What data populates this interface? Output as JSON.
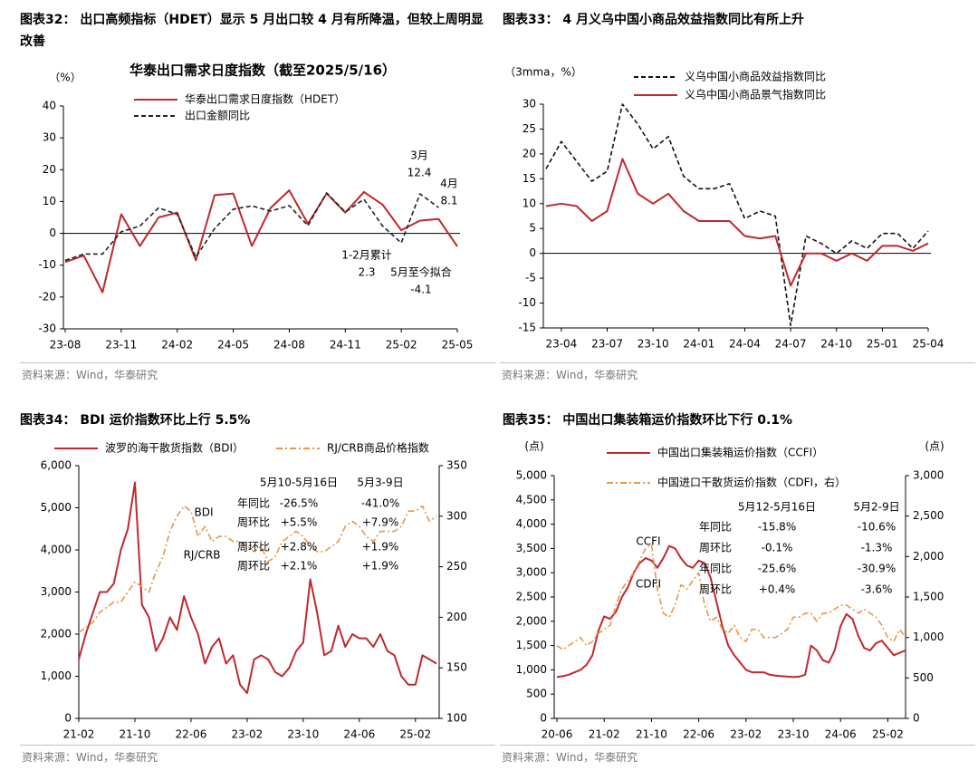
{
  "chart_data": [
    {
      "type": "line",
      "figure_title": "图表32：  出口高频指标（HDET）显示 5 月出口较 4 月有所降温，但较上周明显改善",
      "title": "华泰出口需求日度指数（截至2025/5/16）",
      "y_label": "（%）",
      "source": "资料来源：Wind，华泰研究",
      "categories": [
        "23-08",
        null,
        null,
        "23-11",
        null,
        null,
        "24-02",
        null,
        null,
        "24-05",
        null,
        null,
        "24-08",
        null,
        null,
        "24-11",
        null,
        null,
        "25-02",
        null,
        null,
        "25-05"
      ],
      "series": [
        {
          "name": "华泰出口需求日度指数（HDET）",
          "color": "#c0282d",
          "style": "solid",
          "values": [
            -9,
            -7,
            -18.5,
            6,
            -4,
            5,
            6.5,
            -8.5,
            12,
            12.5,
            -4,
            8,
            13.5,
            3,
            12.5,
            6.5,
            13,
            9,
            1,
            4,
            4.5,
            -4.1
          ]
        },
        {
          "name": "出口金额同比",
          "color": "#222222",
          "style": "dashed",
          "values": [
            -8.5,
            -6.5,
            -6.5,
            0.5,
            2.3,
            8,
            6,
            -7.5,
            1.5,
            7.6,
            8.6,
            7,
            8.7,
            2.4,
            12.7,
            6.7,
            10.7,
            2.3,
            -3,
            12.4,
            8.1,
            null
          ]
        }
      ],
      "ylim": [
        -30,
        40
      ],
      "yticks": [
        -30,
        -20,
        -10,
        0,
        10,
        20,
        30,
        40
      ],
      "zero_line": true,
      "annotations": [
        {
          "text": "3月",
          "color": "#000000"
        },
        {
          "text": "12.4",
          "color": "#000000"
        },
        {
          "text": "4月",
          "color": "#000000"
        },
        {
          "text": "8.1",
          "color": "#000000"
        },
        {
          "text": "1-2月累计",
          "color": "#000000"
        },
        {
          "text": "2.3",
          "color": "#000000"
        },
        {
          "text": "5月至今拟合",
          "color": "#c0282d"
        },
        {
          "text": "-4.1",
          "color": "#c0282d"
        }
      ]
    },
    {
      "type": "line",
      "figure_title": "图表33：  4 月义乌中国小商品效益指数同比有所上升",
      "y_label": "（3mma，%）",
      "source": "资料来源：Wind，华泰研究",
      "categories": [
        null,
        "23-04",
        null,
        null,
        "23-07",
        null,
        null,
        "23-10",
        null,
        null,
        "24-01",
        null,
        null,
        "24-04",
        null,
        null,
        "24-07",
        null,
        null,
        "24-10",
        null,
        null,
        "25-01",
        null,
        null,
        "25-04"
      ],
      "series": [
        {
          "name": "义乌中国小商品效益指数同比",
          "color": "#111111",
          "style": "dashed",
          "values": [
            17,
            22.5,
            18.5,
            14.5,
            16.5,
            30,
            26,
            21,
            23.5,
            15.5,
            13,
            13,
            14,
            7,
            8.5,
            7.5,
            -14.5,
            3.5,
            2,
            0,
            2.5,
            1,
            4,
            4,
            1,
            4.5
          ]
        },
        {
          "name": "义乌中国小商品景气指数同比",
          "color": "#c0282d",
          "style": "solid",
          "values": [
            9.5,
            10,
            9.5,
            6.5,
            8.5,
            19,
            12,
            10,
            12,
            8.5,
            6.5,
            6.5,
            6.5,
            3.5,
            3,
            3.5,
            -6.5,
            0,
            0,
            -1.5,
            0,
            -1.5,
            1.5,
            1.5,
            0.5,
            2
          ]
        }
      ],
      "ylim": [
        -15,
        30
      ],
      "yticks": [
        -15,
        -10,
        -5,
        0,
        5,
        10,
        15,
        20,
        25,
        30
      ],
      "zero_line": true,
      "annotations": []
    },
    {
      "type": "line",
      "figure_title": "图表34：  BDI 运价指数环比上行 5.5%",
      "source": "资料来源：Wind，华泰研究",
      "categories": [
        "21-02",
        null,
        null,
        null,
        null,
        null,
        null,
        null,
        "21-10",
        null,
        null,
        null,
        null,
        null,
        null,
        null,
        "22-06",
        null,
        null,
        null,
        null,
        null,
        null,
        null,
        "23-02",
        null,
        null,
        null,
        null,
        null,
        null,
        null,
        "23-10",
        null,
        null,
        null,
        null,
        null,
        null,
        null,
        "24-06",
        null,
        null,
        null,
        null,
        null,
        null,
        null,
        "25-02",
        null,
        null,
        null
      ],
      "series": [
        {
          "name": "波罗的海干散货指数（BDI）",
          "color": "#c0282d",
          "style": "solid",
          "axis": "y",
          "values": [
            1400,
            2000,
            2500,
            3000,
            3000,
            3200,
            4000,
            4500,
            5600,
            2700,
            2400,
            1600,
            1900,
            2400,
            2100,
            2900,
            2400,
            2000,
            1300,
            1700,
            1900,
            1300,
            1500,
            800,
            600,
            1400,
            1500,
            1400,
            1100,
            1000,
            1200,
            1600,
            1800,
            3300,
            2500,
            1500,
            1600,
            2200,
            1700,
            2000,
            1900,
            1900,
            1700,
            2000,
            1600,
            1500,
            1000,
            800,
            800,
            1500,
            1400,
            1300
          ]
        },
        {
          "name": "RJ/CRB商品价格指数",
          "color": "#e8964a",
          "style": "dashdot",
          "axis": "y2",
          "values": [
            185,
            190,
            195,
            205,
            210,
            215,
            215,
            225,
            235,
            230,
            225,
            245,
            260,
            285,
            300,
            310,
            305,
            280,
            290,
            275,
            280,
            280,
            275,
            275,
            270,
            265,
            270,
            255,
            260,
            275,
            280,
            285,
            280,
            270,
            265,
            265,
            270,
            275,
            290,
            295,
            290,
            280,
            275,
            285,
            285,
            285,
            290,
            305,
            305,
            310,
            295,
            300
          ]
        }
      ],
      "ylim": [
        0,
        6000
      ],
      "yticks": [
        0,
        {
          "value": 1000,
          "label": "1,000"
        },
        {
          "value": 2000,
          "label": "2,000"
        },
        {
          "value": 3000,
          "label": "3,000"
        },
        {
          "value": 4000,
          "label": "4,000"
        },
        {
          "value": 5000,
          "label": "5,000"
        },
        {
          "value": 6000,
          "label": "6,000"
        }
      ],
      "y2lim": [
        100,
        350
      ],
      "y2ticks": [
        100,
        150,
        200,
        250,
        300,
        350
      ],
      "zero_line": false,
      "annotations": [
        {
          "text": "BDI",
          "color": "#000000"
        },
        {
          "text": "RJ/CRB",
          "color": "#000000"
        }
      ],
      "table": {
        "columns": [
          "5月10-5月16日",
          "5月3-9日"
        ],
        "rows": [
          [
            "年同比",
            "-26.5%",
            "-41.0%"
          ],
          [
            "周环比",
            "+5.5%",
            "+7.9%"
          ],
          [
            "周环比",
            "+2.8%",
            "+1.9%"
          ],
          [
            "周环比",
            "+2.1%",
            "+1.9%"
          ]
        ]
      }
    },
    {
      "type": "line",
      "figure_title": "图表35：  中国出口集装箱运价指数环比下行 0.1%",
      "y_label": "(点)",
      "y2_label": "(点)",
      "source": "资料来源：Wind，华泰研究",
      "categories": [
        "20-06",
        null,
        null,
        null,
        null,
        null,
        null,
        null,
        "21-02",
        null,
        null,
        null,
        null,
        null,
        null,
        null,
        "21-10",
        null,
        null,
        null,
        null,
        null,
        null,
        null,
        "22-06",
        null,
        null,
        null,
        null,
        null,
        null,
        null,
        "23-02",
        null,
        null,
        null,
        null,
        null,
        null,
        null,
        "23-10",
        null,
        null,
        null,
        null,
        null,
        null,
        null,
        "24-06",
        null,
        null,
        null,
        null,
        null,
        null,
        null,
        "25-02",
        null,
        null,
        null
      ],
      "series": [
        {
          "name": "中国出口集装箱运价指数（CCFI）",
          "color": "#c0282d",
          "style": "solid",
          "axis": "y",
          "values": [
            850,
            870,
            900,
            950,
            1000,
            1100,
            1300,
            1800,
            2100,
            2050,
            2200,
            2500,
            2700,
            3000,
            3200,
            3300,
            3250,
            3100,
            3300,
            3550,
            3500,
            3300,
            3150,
            3100,
            3250,
            3200,
            2900,
            2400,
            1900,
            1500,
            1300,
            1150,
            1000,
            950,
            950,
            950,
            900,
            880,
            870,
            860,
            850,
            860,
            900,
            1500,
            1400,
            1200,
            1150,
            1400,
            1900,
            2150,
            2050,
            1700,
            1450,
            1400,
            1550,
            1600,
            1450,
            1300,
            1350,
            1400
          ]
        },
        {
          "name": "中国进口干散货运价指数（CDFI，右）",
          "color": "#e8964a",
          "style": "dashdot",
          "axis": "y2",
          "values": [
            900,
            850,
            900,
            950,
            1000,
            900,
            950,
            1050,
            1100,
            1150,
            1400,
            1600,
            1700,
            1800,
            1950,
            2100,
            2150,
            1600,
            1300,
            1250,
            1400,
            1650,
            1600,
            1700,
            1800,
            1400,
            1200,
            1250,
            1100,
            1050,
            1150,
            1000,
            950,
            1100,
            1100,
            1000,
            1000,
            1000,
            1050,
            1100,
            1250,
            1250,
            1300,
            1300,
            1200,
            1300,
            1300,
            1350,
            1400,
            1400,
            1350,
            1300,
            1350,
            1300,
            1250,
            1150,
            1000,
            950,
            1100,
            1000
          ]
        }
      ],
      "ylim": [
        0,
        5000
      ],
      "yticks": [
        0,
        500,
        {
          "value": 1000,
          "label": "1,000"
        },
        {
          "value": 1500,
          "label": "1,500"
        },
        {
          "value": 2000,
          "label": "2,000"
        },
        {
          "value": 2500,
          "label": "2,500"
        },
        {
          "value": 3000,
          "label": "3,000"
        },
        {
          "value": 3500,
          "label": "3,500"
        },
        {
          "value": 4000,
          "label": "4,000"
        },
        {
          "value": 4500,
          "label": "4,500"
        },
        {
          "value": 5000,
          "label": "5,000"
        }
      ],
      "y2lim": [
        0,
        3000
      ],
      "y2ticks": [
        0,
        500,
        {
          "value": 1000,
          "label": "1,000"
        },
        {
          "value": 1500,
          "label": "1,500"
        },
        {
          "value": 2000,
          "label": "2,000"
        },
        {
          "value": 2500,
          "label": "2,500"
        },
        {
          "value": 3000,
          "label": "3,000"
        }
      ],
      "zero_line": false,
      "annotations": [
        {
          "text": "CCFI",
          "color": "#000000"
        },
        {
          "text": "CDFI",
          "color": "#000000"
        }
      ],
      "table": {
        "columns": [
          "5月12-5月16日",
          "5月2-9日"
        ],
        "rows": [
          [
            "年同比",
            "-15.8%",
            "-10.6%"
          ],
          [
            "周环比",
            "-0.1%",
            "-1.3%"
          ],
          [
            "年同比",
            "-25.6%",
            "-30.9%"
          ],
          [
            "周环比",
            "+0.4%",
            "-3.6%"
          ]
        ]
      }
    }
  ]
}
